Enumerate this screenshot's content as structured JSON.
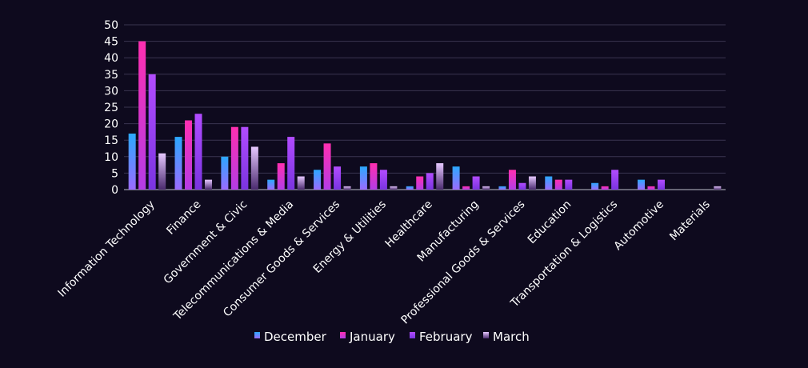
{
  "chart_data": {
    "type": "bar",
    "title": "",
    "xlabel": "",
    "ylabel": "",
    "ylim": [
      0,
      50
    ],
    "yticks": [
      0,
      5,
      10,
      15,
      20,
      25,
      30,
      35,
      40,
      45,
      50
    ],
    "grid": true,
    "legend_position": "bottom",
    "categories": [
      "Information Technology",
      "Finance",
      "Government & Civic",
      "Telecommunications & Media",
      "Consumer Goods & Services",
      "Energy & Utilities",
      "Healthcare",
      "Manufacturing",
      "Professional Goods & Services",
      "Education",
      "Transportation & Logistics",
      "Automotive",
      "Materials"
    ],
    "series": [
      {
        "name": "December",
        "color_top": "#2ba8ff",
        "color_bottom": "#9b6bff",
        "values": [
          17,
          16,
          10,
          3,
          6,
          7,
          1,
          7,
          1,
          4,
          2,
          3,
          0
        ]
      },
      {
        "name": "January",
        "color_top": "#ff2fb0",
        "color_bottom": "#b43ce6",
        "values": [
          45,
          21,
          19,
          8,
          14,
          8,
          4,
          1,
          6,
          3,
          1,
          1,
          0
        ]
      },
      {
        "name": "February",
        "color_top": "#b24cff",
        "color_bottom": "#7a34e0",
        "values": [
          35,
          23,
          19,
          16,
          7,
          6,
          5,
          4,
          2,
          3,
          6,
          3,
          0
        ]
      },
      {
        "name": "March",
        "color_top": "#e6c8ff",
        "color_bottom": "#4a2a6e",
        "values": [
          11,
          3,
          13,
          4,
          1,
          1,
          8,
          1,
          4,
          0,
          0,
          0,
          1
        ]
      }
    ]
  }
}
